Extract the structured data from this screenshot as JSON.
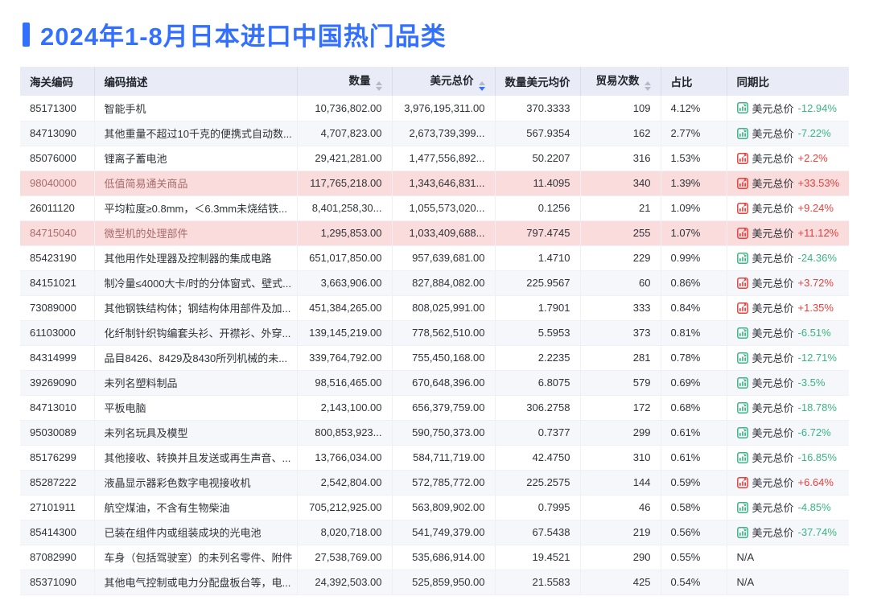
{
  "title": "2024年1-8月日本进口中国热门品类",
  "colors": {
    "accent": "#3370ff",
    "increase_red": "#e5413c",
    "decrease_green": "#3ab584",
    "highlight_row_bg": "#fadcdc",
    "header_bg": "#e9ecf7"
  },
  "table": {
    "yoy_label": "美元总价",
    "na_label": "N/A",
    "columns": [
      {
        "key": "code",
        "label": "海关编码",
        "sortable": false,
        "sort": "none",
        "align": "left"
      },
      {
        "key": "desc",
        "label": "编码描述",
        "sortable": false,
        "sort": "none",
        "align": "left"
      },
      {
        "key": "qty",
        "label": "数量",
        "sortable": true,
        "sort": "none",
        "align": "right"
      },
      {
        "key": "usd",
        "label": "美元总价",
        "sortable": true,
        "sort": "desc",
        "align": "right"
      },
      {
        "key": "avg",
        "label": "数量美元均价",
        "sortable": false,
        "sort": "none",
        "align": "right"
      },
      {
        "key": "trades",
        "label": "贸易次数",
        "sortable": true,
        "sort": "none",
        "align": "right"
      },
      {
        "key": "share",
        "label": "占比",
        "sortable": false,
        "sort": "none",
        "align": "left"
      },
      {
        "key": "yoy",
        "label": "同期比",
        "sortable": false,
        "sort": "none",
        "align": "left"
      }
    ],
    "rows": [
      {
        "code": "85171300",
        "desc": "智能手机",
        "qty": "10,736,802.00",
        "usd": "3,976,195,311.00",
        "avg": "370.3333",
        "trades": "109",
        "share": "4.12%",
        "trend": "down",
        "yoy_value": "-12.94%",
        "highlight": false
      },
      {
        "code": "84713090",
        "desc": "其他重量不超过10千克的便携式自动数...",
        "qty": "4,707,823.00",
        "usd": "2,673,739,399...",
        "avg": "567.9354",
        "trades": "162",
        "share": "2.77%",
        "trend": "down",
        "yoy_value": "-7.22%",
        "highlight": false
      },
      {
        "code": "85076000",
        "desc": "锂离子蓄电池",
        "qty": "29,421,281.00",
        "usd": "1,477,556,892...",
        "avg": "50.2207",
        "trades": "316",
        "share": "1.53%",
        "trend": "up",
        "yoy_value": "+2.2%",
        "highlight": false
      },
      {
        "code": "98040000",
        "desc": "低值简易通关商品",
        "qty": "117,765,218.00",
        "usd": "1,343,646,831...",
        "avg": "11.4095",
        "trades": "340",
        "share": "1.39%",
        "trend": "up",
        "yoy_value": "+33.53%",
        "highlight": true
      },
      {
        "code": "26011120",
        "desc": "平均粒度≥0.8mm，＜6.3mm未烧结铁...",
        "qty": "8,401,258,30...",
        "usd": "1,055,573,020...",
        "avg": "0.1256",
        "trades": "21",
        "share": "1.09%",
        "trend": "up",
        "yoy_value": "+9.24%",
        "highlight": false
      },
      {
        "code": "84715040",
        "desc": "微型机的处理部件",
        "qty": "1,295,853.00",
        "usd": "1,033,409,688...",
        "avg": "797.4745",
        "trades": "255",
        "share": "1.07%",
        "trend": "up",
        "yoy_value": "+11.12%",
        "highlight": true
      },
      {
        "code": "85423190",
        "desc": "其他用作处理器及控制器的集成电路",
        "qty": "651,017,850.00",
        "usd": "957,639,681.00",
        "avg": "1.4710",
        "trades": "229",
        "share": "0.99%",
        "trend": "down",
        "yoy_value": "-24.36%",
        "highlight": false
      },
      {
        "code": "84151021",
        "desc": "制冷量≤4000大卡/时的分体窗式、壁式...",
        "qty": "3,663,906.00",
        "usd": "827,884,082.00",
        "avg": "225.9567",
        "trades": "60",
        "share": "0.86%",
        "trend": "up",
        "yoy_value": "+3.72%",
        "highlight": false
      },
      {
        "code": "73089000",
        "desc": "其他钢铁结构体；钢结构体用部件及加...",
        "qty": "451,384,265.00",
        "usd": "808,025,991.00",
        "avg": "1.7901",
        "trades": "333",
        "share": "0.84%",
        "trend": "up",
        "yoy_value": "+1.35%",
        "highlight": false
      },
      {
        "code": "61103000",
        "desc": "化纤制针织钩编套头衫、开襟衫、外穿...",
        "qty": "139,145,219.00",
        "usd": "778,562,510.00",
        "avg": "5.5953",
        "trades": "373",
        "share": "0.81%",
        "trend": "down",
        "yoy_value": "-6.51%",
        "highlight": false
      },
      {
        "code": "84314999",
        "desc": "品目8426、8429及8430所列机械的未...",
        "qty": "339,764,792.00",
        "usd": "755,450,168.00",
        "avg": "2.2235",
        "trades": "281",
        "share": "0.78%",
        "trend": "down",
        "yoy_value": "-12.71%",
        "highlight": false
      },
      {
        "code": "39269090",
        "desc": "未列名塑料制品",
        "qty": "98,516,465.00",
        "usd": "670,648,396.00",
        "avg": "6.8075",
        "trades": "579",
        "share": "0.69%",
        "trend": "down",
        "yoy_value": "-3.5%",
        "highlight": false
      },
      {
        "code": "84713010",
        "desc": "平板电脑",
        "qty": "2,143,100.00",
        "usd": "656,379,759.00",
        "avg": "306.2758",
        "trades": "172",
        "share": "0.68%",
        "trend": "down",
        "yoy_value": "-18.78%",
        "highlight": false
      },
      {
        "code": "95030089",
        "desc": "未列名玩具及模型",
        "qty": "800,853,923...",
        "usd": "590,750,373.00",
        "avg": "0.7377",
        "trades": "299",
        "share": "0.61%",
        "trend": "down",
        "yoy_value": "-6.72%",
        "highlight": false
      },
      {
        "code": "85176299",
        "desc": "其他接收、转换并且发送或再生声音、...",
        "qty": "13,766,034.00",
        "usd": "584,711,719.00",
        "avg": "42.4750",
        "trades": "310",
        "share": "0.61%",
        "trend": "down",
        "yoy_value": "-16.85%",
        "highlight": false
      },
      {
        "code": "85287222",
        "desc": "液晶显示器彩色数字电视接收机",
        "qty": "2,542,804.00",
        "usd": "572,785,772.00",
        "avg": "225.2575",
        "trades": "144",
        "share": "0.59%",
        "trend": "up",
        "yoy_value": "+6.64%",
        "highlight": false
      },
      {
        "code": "27101911",
        "desc": "航空煤油，不含有生物柴油",
        "qty": "705,212,925.00",
        "usd": "563,809,902.00",
        "avg": "0.7995",
        "trades": "46",
        "share": "0.58%",
        "trend": "down",
        "yoy_value": "-4.85%",
        "highlight": false
      },
      {
        "code": "85414300",
        "desc": "已装在组件内或组装成块的光电池",
        "qty": "8,020,718.00",
        "usd": "541,749,379.00",
        "avg": "67.5438",
        "trades": "219",
        "share": "0.56%",
        "trend": "down",
        "yoy_value": "-37.74%",
        "highlight": false
      },
      {
        "code": "87082990",
        "desc": "车身（包括驾驶室）的未列名零件、附件",
        "qty": "27,538,769.00",
        "usd": "535,686,914.00",
        "avg": "19.4521",
        "trades": "290",
        "share": "0.55%",
        "trend": "none",
        "yoy_value": "N/A",
        "highlight": false
      },
      {
        "code": "85371090",
        "desc": "其他电气控制或电力分配盘板台等，电...",
        "qty": "24,392,503.00",
        "usd": "525,859,950.00",
        "avg": "21.5583",
        "trades": "425",
        "share": "0.54%",
        "trend": "none",
        "yoy_value": "N/A",
        "highlight": false
      }
    ]
  }
}
